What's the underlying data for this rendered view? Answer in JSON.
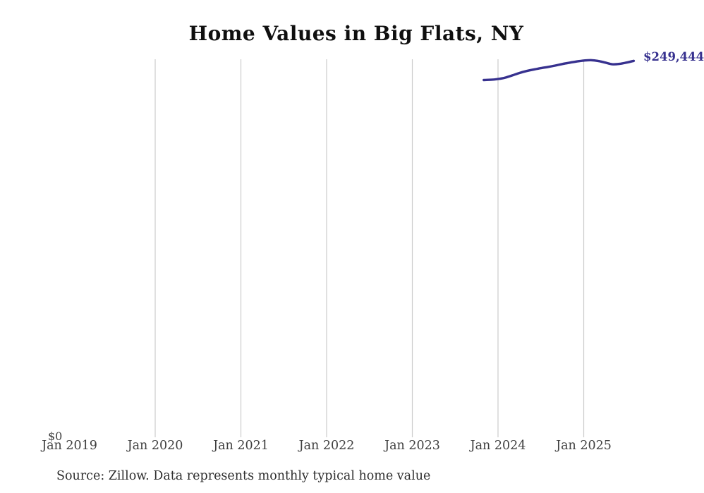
{
  "title": "Home Values in Big Flats, NY",
  "y_zero_label": "$0",
  "end_value_label": "$249,444",
  "source_note": "Source: Zillow. Data represents monthly typical home value",
  "colors": {
    "line": "#37318f",
    "end_label": "#37318f",
    "gridline": "#cccccc",
    "axis_text": "#3f3f3f",
    "title_text": "#0f0f0f",
    "source_text": "#2e2e2e"
  },
  "chart_data": {
    "type": "line",
    "title": "Home Values in Big Flats, NY",
    "xlabel": "",
    "ylabel": "",
    "ylim": [
      0,
      250500
    ],
    "grid": "vertical-only",
    "legend": "none",
    "x_tick_labels": [
      "Jan 2019",
      "Jan 2020",
      "Jan 2021",
      "Jan 2022",
      "Jan 2023",
      "Jan 2024",
      "Jan 2025"
    ],
    "y_tick_labels": [
      "$0"
    ],
    "annotation": "$249,444 shown at end of line (clipped at right edge)",
    "series": [
      {
        "name": "Monthly typical home value",
        "x": [
          "Nov 2023",
          "Dec 2023",
          "Jan 2024",
          "Feb 2024",
          "Mar 2024",
          "Apr 2024",
          "May 2024",
          "Jun 2024",
          "Jul 2024",
          "Aug 2024",
          "Sep 2024",
          "Oct 2024",
          "Nov 2024",
          "Dec 2024",
          "Jan 2025",
          "Feb 2025",
          "Mar 2025",
          "Apr 2025",
          "May 2025",
          "Jun 2025",
          "Jul 2025",
          "Aug 2025"
        ],
        "values": [
          236700,
          236900,
          237400,
          238300,
          239800,
          241400,
          242700,
          243700,
          244600,
          245400,
          246300,
          247300,
          248200,
          249000,
          249600,
          249900,
          249400,
          248300,
          247200,
          247400,
          248300,
          249444
        ]
      }
    ]
  }
}
